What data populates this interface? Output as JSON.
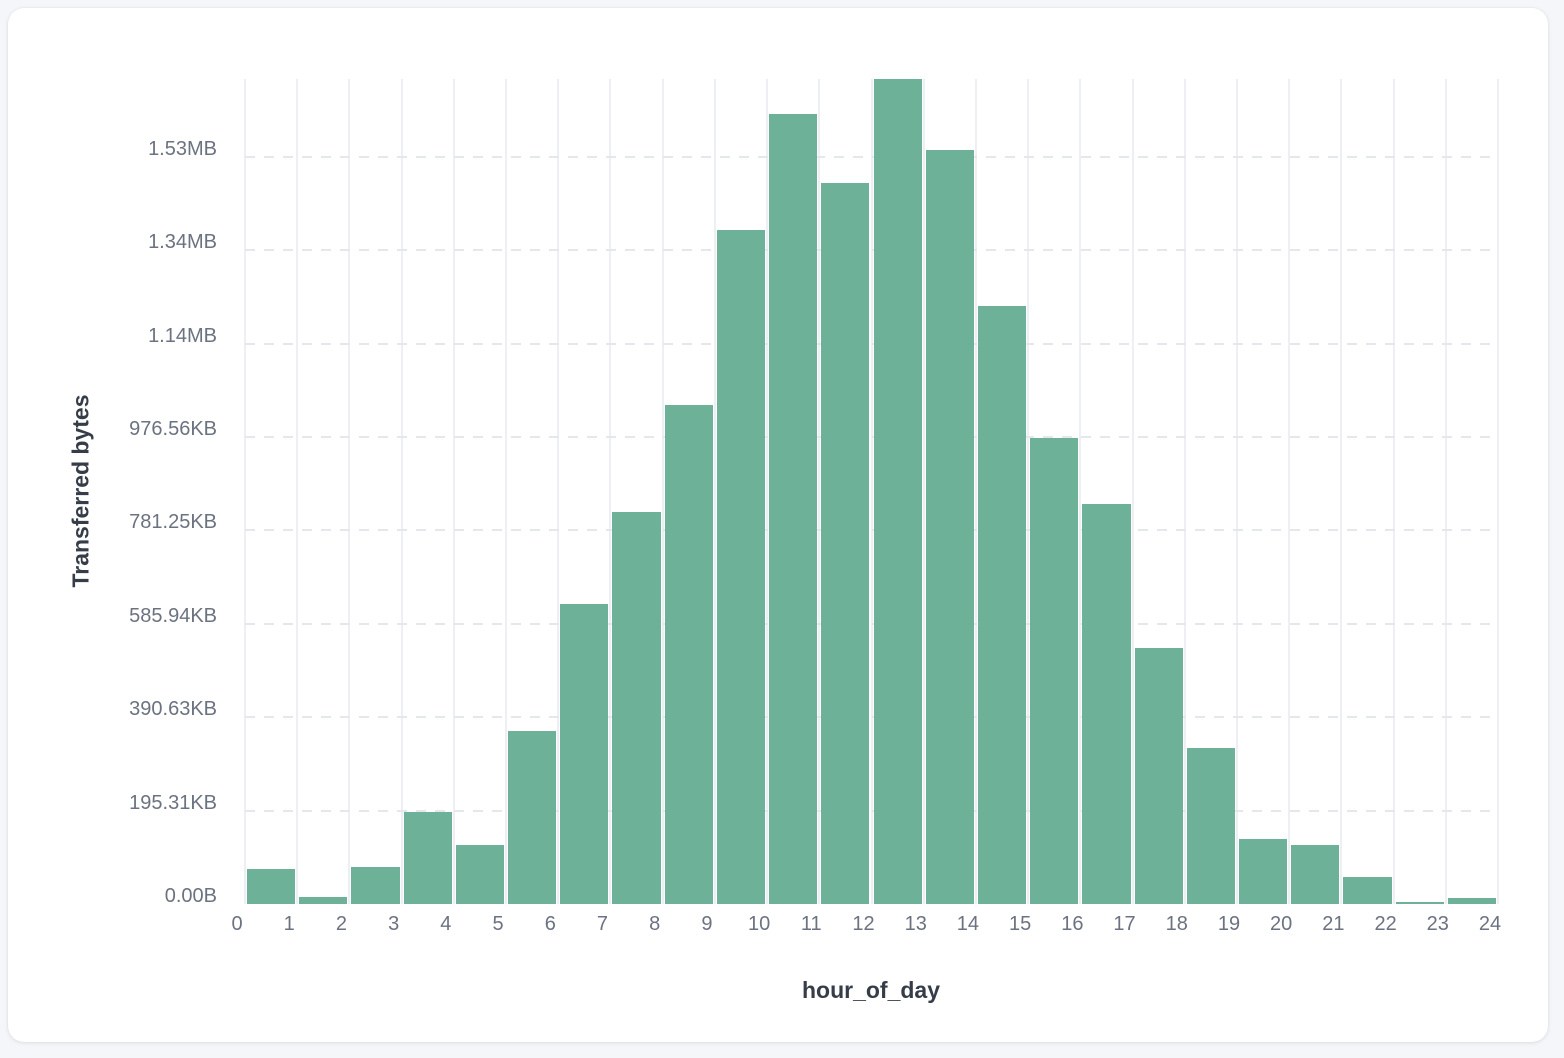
{
  "chart_data": {
    "type": "bar",
    "title": "",
    "xlabel": "hour_of_day",
    "ylabel": "Transferred bytes",
    "x": [
      0,
      1,
      2,
      3,
      4,
      5,
      6,
      7,
      8,
      9,
      10,
      11,
      12,
      13,
      14,
      15,
      16,
      17,
      18,
      19,
      20,
      21,
      22,
      23
    ],
    "values_kb": [
      73,
      15,
      77,
      192,
      123,
      361,
      627,
      819,
      1044,
      1409,
      1651,
      1508,
      1724,
      1577,
      1250,
      974,
      836,
      535,
      326,
      136,
      124,
      56,
      4,
      13
    ],
    "x_tick_labels": [
      "0",
      "1",
      "2",
      "3",
      "4",
      "5",
      "6",
      "7",
      "8",
      "9",
      "10",
      "11",
      "12",
      "13",
      "14",
      "15",
      "16",
      "17",
      "18",
      "19",
      "20",
      "21",
      "22",
      "23",
      "24"
    ],
    "y_ticks": [
      {
        "label": "0.00B",
        "kb": 0
      },
      {
        "label": "195.31KB",
        "kb": 195.3125
      },
      {
        "label": "390.63KB",
        "kb": 390.625
      },
      {
        "label": "585.94KB",
        "kb": 585.9375
      },
      {
        "label": "781.25KB",
        "kb": 781.25
      },
      {
        "label": "976.56KB",
        "kb": 976.5625
      },
      {
        "label": "1.14MB",
        "kb": 1171.875
      },
      {
        "label": "1.34MB",
        "kb": 1367.1875
      },
      {
        "label": "1.53MB",
        "kb": 1562.5
      }
    ],
    "ylim_kb": [
      0,
      1725
    ],
    "grid": {
      "vertical": "solid",
      "horizontal": "dashed"
    },
    "legend": "none",
    "colors": {
      "bar": "#6db199",
      "grid_vertical": "#edeff4",
      "grid_horizontal": "#e4e7ec",
      "tick_text": "#6b7280",
      "axis_title_text": "#363d49",
      "card_background": "#ffffff",
      "page_background": "#f4f6f9"
    }
  }
}
